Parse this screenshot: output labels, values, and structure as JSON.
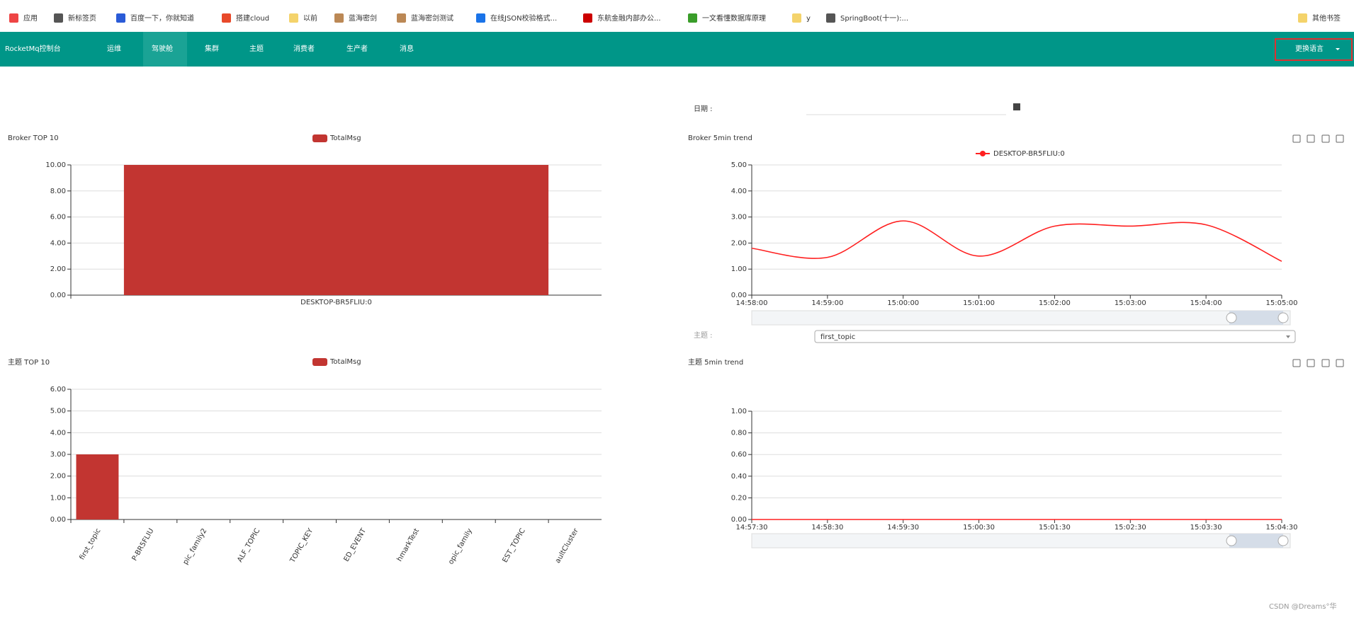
{
  "bookmarks": [
    "应用",
    "新标签页",
    "百度一下，你就知道",
    "搭建cloud",
    "以前",
    "蓝海密剑",
    "蓝海密剑测试",
    "在线JSON校验格式...",
    "东航金融内部办公...",
    "一文看懂数据库原理",
    "y",
    "SpringBoot(十一):...",
    "其他书签"
  ],
  "nav": {
    "brand": "RocketMq控制台",
    "items": [
      "运维",
      "驾驶舱",
      "集群",
      "主题",
      "消费者",
      "生产者",
      "消息"
    ],
    "active": 1,
    "language_button": "更换语言"
  },
  "date_label": "日期 :",
  "topic_label": "主题 :",
  "topic_value": "first_topic",
  "chart_data": [
    {
      "type": "bar",
      "title": "Broker TOP 10",
      "categories": [
        "DESKTOP-BR5FLIU:0"
      ],
      "series": [
        {
          "name": "TotalMsg",
          "color": "#c23531",
          "values": [
            10
          ]
        }
      ],
      "ylim": [
        0,
        10
      ],
      "yticks": [
        {
          "value": 0,
          "label": "0.00"
        },
        {
          "value": 2,
          "label": "2.00"
        },
        {
          "value": 4,
          "label": "4.00"
        },
        {
          "value": 6,
          "label": "6.00"
        },
        {
          "value": 8,
          "label": "8.00"
        },
        {
          "value": 10,
          "label": "10.00"
        }
      ],
      "grid": true
    },
    {
      "type": "line",
      "title": "Broker 5min trend",
      "categories": [
        "14:58:00",
        "14:59:00",
        "15:00:00",
        "15:01:00",
        "15:02:00",
        "15:03:00",
        "15:04:00",
        "15:05:00"
      ],
      "series": [
        {
          "name": "DESKTOP-BR5FLIU:0",
          "color": "#ff2020",
          "values": [
            1.8,
            1.45,
            2.85,
            1.5,
            2.65,
            2.65,
            2.7,
            1.3
          ]
        }
      ],
      "ylim": [
        0,
        5
      ],
      "yticks": [
        {
          "value": 0,
          "label": "0.00"
        },
        {
          "value": 1,
          "label": "1.00"
        },
        {
          "value": 2,
          "label": "2.00"
        },
        {
          "value": 3,
          "label": "3.00"
        },
        {
          "value": 4,
          "label": "4.00"
        },
        {
          "value": 5,
          "label": "5.00"
        }
      ],
      "grid": true,
      "smooth": true
    },
    {
      "type": "bar",
      "title": "主题 TOP 10",
      "categories": [
        "first_topic",
        "P-BR5FLIU",
        "pic_family2",
        "ALF_TOPIC",
        "TOPIC_KEY",
        "ED_EVENT",
        "hmarkTest",
        "opic_family",
        "EST_TOPIC",
        "aultCluster"
      ],
      "series": [
        {
          "name": "TotalMsg",
          "color": "#c23531",
          "values": [
            3,
            0,
            0,
            0,
            0,
            0,
            0,
            0,
            0,
            0
          ]
        }
      ],
      "ylim": [
        0,
        6
      ],
      "yticks": [
        {
          "value": 0,
          "label": "0.00"
        },
        {
          "value": 1,
          "label": "1.00"
        },
        {
          "value": 2,
          "label": "2.00"
        },
        {
          "value": 3,
          "label": "3.00"
        },
        {
          "value": 4,
          "label": "4.00"
        },
        {
          "value": 5,
          "label": "5.00"
        },
        {
          "value": 6,
          "label": "6.00"
        }
      ],
      "grid": true
    },
    {
      "type": "line",
      "title": "主题 5min trend",
      "categories": [
        "14:57:30",
        "14:58:30",
        "14:59:30",
        "15:00:30",
        "15:01:30",
        "15:02:30",
        "15:03:30",
        "15:04:30"
      ],
      "series": [
        {
          "color": "#ff2020",
          "values": [
            0,
            0,
            0,
            0,
            0,
            0,
            0,
            0
          ]
        }
      ],
      "ylim": [
        0,
        1
      ],
      "yticks": [
        {
          "value": 0,
          "label": "0.00"
        },
        {
          "value": 0.2,
          "label": "0.20"
        },
        {
          "value": 0.4,
          "label": "0.40"
        },
        {
          "value": 0.6,
          "label": "0.60"
        },
        {
          "value": 0.8,
          "label": "0.80"
        },
        {
          "value": 1,
          "label": "1.00"
        }
      ],
      "grid": true,
      "smooth": true
    }
  ],
  "watermark": "CSDN @Dreams°华"
}
